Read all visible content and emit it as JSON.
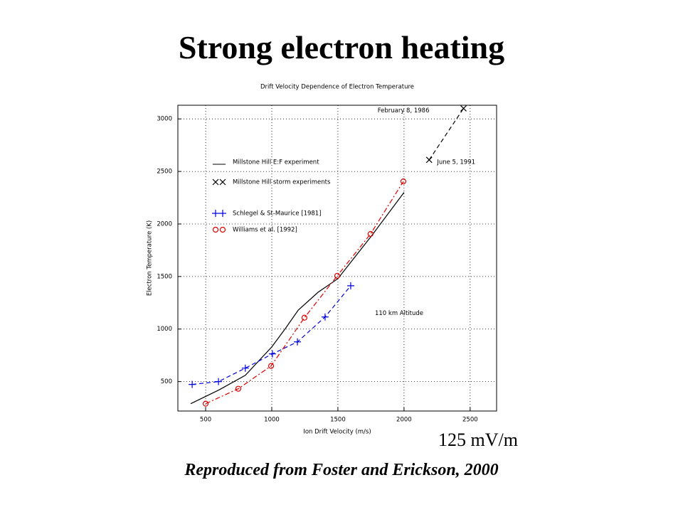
{
  "chart_data": {
    "type": "line",
    "page_title": "Strong electron heating",
    "title": "Drift Velocity Dependence of Electron Temperature",
    "xlabel": "Ion Drift Velocity (m/s)",
    "ylabel": "Electron Temperature (K)",
    "xlim": [
      290,
      2700
    ],
    "ylim": [
      220,
      3130
    ],
    "xticks": [
      500,
      1000,
      1500,
      2000,
      2500
    ],
    "yticks": [
      500,
      1000,
      1500,
      2000,
      2500,
      3000
    ],
    "grid": true,
    "legend": "upper left",
    "series": [
      {
        "name": "Millstone Hill E:F experiment",
        "color": "#000000",
        "marker": "none",
        "line": "solid",
        "x": [
          387,
          600,
          800,
          1000,
          1100,
          1200,
          1350,
          1500,
          1750,
          2000
        ],
        "y": [
          290,
          420,
          560,
          830,
          1000,
          1180,
          1350,
          1480,
          1880,
          2300
        ]
      },
      {
        "name": "Millstone Hill storm experiments",
        "color": "#000000",
        "marker": "x",
        "line": "dashed",
        "x": [
          2190,
          2450
        ],
        "y": [
          2610,
          3100
        ]
      },
      {
        "name": "Schlegel & St-Maurice [1981]",
        "color": "#0000dd",
        "marker": "plus",
        "line": "dashed",
        "x": [
          398,
          597,
          800,
          1005,
          1194,
          1403,
          1597
        ],
        "y": [
          473,
          500,
          628,
          764,
          878,
          1115,
          1412
        ]
      },
      {
        "name": "Williams et al. [1992]",
        "color": "#dd0000",
        "marker": "circle",
        "line": "dashdot",
        "x": [
          500,
          747,
          995,
          1247,
          1495,
          1747,
          1995
        ],
        "y": [
          290,
          432,
          649,
          1108,
          1507,
          1905,
          2405
        ]
      }
    ],
    "annotations": [
      {
        "text": "February 8, 1986",
        "x": 1800,
        "y": 3080
      },
      {
        "text": "June 5, 1991",
        "x": 2250,
        "y": 2590
      },
      {
        "text": "110 km Altitude",
        "x": 1780,
        "y": 1150
      }
    ],
    "note": "125 mV/m",
    "credit": "Reproduced from Foster and Erickson, 2000"
  }
}
